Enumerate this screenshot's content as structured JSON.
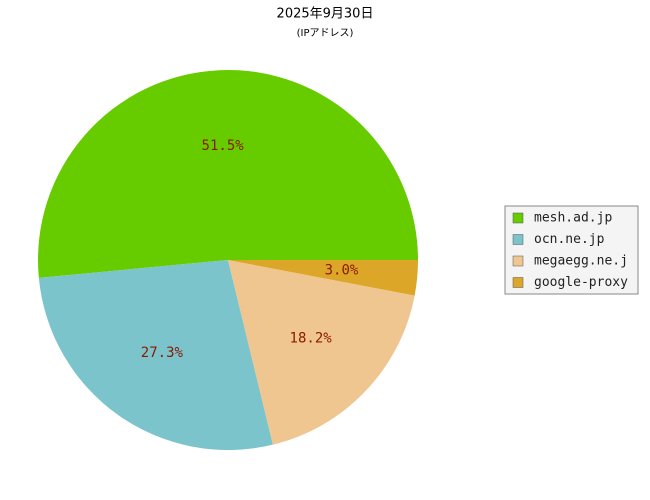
{
  "chart_data": {
    "type": "pie",
    "title": "2025年9月30日",
    "subtitle": "(IPアドレス)",
    "categories": [
      "mesh.ad.jp",
      "ocn.ne.jp",
      "megaegg.ne.j",
      "google-proxy"
    ],
    "values": [
      51.5,
      27.3,
      18.2,
      3.0
    ],
    "value_labels": [
      "51.5%",
      "27.3%",
      "18.2%",
      "3.0%"
    ],
    "colors": [
      "#66cc00",
      "#7bc4cc",
      "#efc690",
      "#dca628"
    ],
    "legend": "right"
  }
}
